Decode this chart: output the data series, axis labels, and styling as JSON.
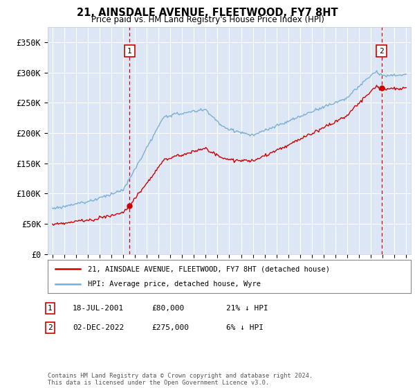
{
  "title": "21, AINSDALE AVENUE, FLEETWOOD, FY7 8HT",
  "subtitle": "Price paid vs. HM Land Registry's House Price Index (HPI)",
  "legend_line1": "21, AINSDALE AVENUE, FLEETWOOD, FY7 8HT (detached house)",
  "legend_line2": "HPI: Average price, detached house, Wyre",
  "annotation1_date": "18-JUL-2001",
  "annotation1_price": "£80,000",
  "annotation1_hpi": "21% ↓ HPI",
  "annotation2_date": "02-DEC-2022",
  "annotation2_price": "£275,000",
  "annotation2_hpi": "6% ↓ HPI",
  "footnote": "Contains HM Land Registry data © Crown copyright and database right 2024.\nThis data is licensed under the Open Government Licence v3.0.",
  "yticks": [
    0,
    50000,
    100000,
    150000,
    200000,
    250000,
    300000,
    350000
  ],
  "ytick_labels": [
    "£0",
    "£50K",
    "£100K",
    "£150K",
    "£200K",
    "£250K",
    "£300K",
    "£350K"
  ],
  "hpi_color": "#7bafd4",
  "price_color": "#cc0000",
  "bg_color": "#dce6f5",
  "grid_color": "#ffffff",
  "marker_color": "#cc0000",
  "annotation_box_color": "#cc0000",
  "sale1_date_num": 2001.54,
  "sale1_price": 80000,
  "sale2_date_num": 2022.92,
  "sale2_price": 275000,
  "ylim_max": 375000
}
